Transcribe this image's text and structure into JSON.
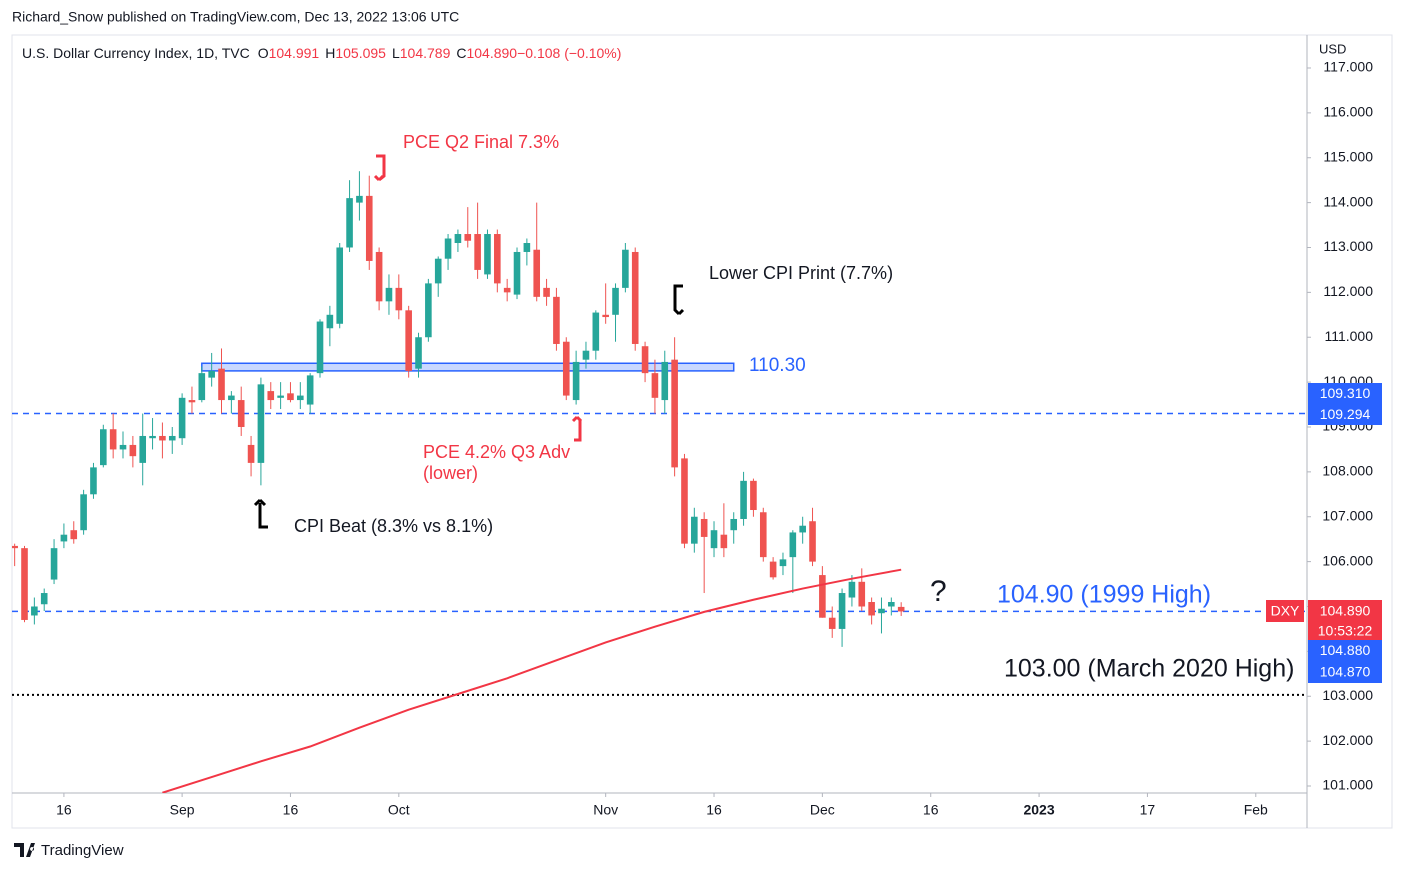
{
  "chart_data": {
    "type": "candlestick",
    "header": "Richard_Snow published on TradingView.com, Dec 13, 2022 13:06 UTC",
    "title": "U.S. Dollar Currency Index, 1D, TVC",
    "legend_items": [
      {
        "key": "O",
        "value": "104.991"
      },
      {
        "key": "H",
        "value": "105.095"
      },
      {
        "key": "L",
        "value": "104.789"
      },
      {
        "key": "C",
        "value": "104.890"
      },
      {
        "key": "",
        "value": "−0.108 (−0.10%)"
      }
    ],
    "currency": "USD",
    "footer": "TradingView",
    "up_color": "#26a69a",
    "down_color": "#ef5350",
    "ylim": [
      100.844,
      117.735
    ],
    "yticks": [
      {
        "value": 101,
        "label": "101.000"
      },
      {
        "value": 102,
        "label": "102.000"
      },
      {
        "value": 103,
        "label": "103.000"
      },
      {
        "value": 104,
        "label": "104.000"
      },
      {
        "value": 105,
        "label": "105.000"
      },
      {
        "value": 106,
        "label": "106.000"
      },
      {
        "value": 107,
        "label": "107.000"
      },
      {
        "value": 108,
        "label": "108.000"
      },
      {
        "value": 109,
        "label": "109.000"
      },
      {
        "value": 110,
        "label": "110.000"
      },
      {
        "value": 111,
        "label": "111.000"
      },
      {
        "value": 112,
        "label": "112.000"
      },
      {
        "value": 113,
        "label": "113.000"
      },
      {
        "value": 114,
        "label": "114.000"
      },
      {
        "value": 115,
        "label": "115.000"
      },
      {
        "value": 116,
        "label": "116.000"
      },
      {
        "value": 117,
        "label": "117.000"
      }
    ],
    "xlim": [
      -0.27,
      131.2
    ],
    "xticks": [
      {
        "value": 5,
        "label": "16"
      },
      {
        "value": 17,
        "label": "Sep"
      },
      {
        "value": 28,
        "label": "16"
      },
      {
        "value": 39,
        "label": "Oct"
      },
      {
        "value": 60,
        "label": "Nov"
      },
      {
        "value": 71,
        "label": "16"
      },
      {
        "value": 82,
        "label": "Dec"
      },
      {
        "value": 93,
        "label": "16"
      },
      {
        "value": 104,
        "label": "2023"
      },
      {
        "value": 115,
        "label": "17"
      },
      {
        "value": 126,
        "label": "Feb"
      }
    ],
    "candles": [
      {
        "open": 106.35,
        "high": 106.4,
        "low": 105.9,
        "close": 106.3
      },
      {
        "open": 106.3,
        "high": 106.35,
        "low": 104.65,
        "close": 104.7
      },
      {
        "open": 104.8,
        "high": 105.2,
        "low": 104.6,
        "close": 105.0
      },
      {
        "open": 105.05,
        "high": 105.4,
        "low": 104.9,
        "close": 105.3
      },
      {
        "open": 105.6,
        "high": 106.5,
        "low": 105.5,
        "close": 106.3
      },
      {
        "open": 106.45,
        "high": 106.85,
        "low": 106.3,
        "close": 106.6
      },
      {
        "open": 106.7,
        "high": 106.9,
        "low": 106.4,
        "close": 106.5
      },
      {
        "open": 106.7,
        "high": 107.6,
        "low": 106.6,
        "close": 107.5
      },
      {
        "open": 107.5,
        "high": 108.2,
        "low": 107.4,
        "close": 108.1
      },
      {
        "open": 108.15,
        "high": 109.05,
        "low": 108.1,
        "close": 108.95
      },
      {
        "open": 108.95,
        "high": 109.3,
        "low": 108.3,
        "close": 108.5
      },
      {
        "open": 108.5,
        "high": 108.9,
        "low": 108.3,
        "close": 108.6
      },
      {
        "open": 108.6,
        "high": 108.8,
        "low": 108.1,
        "close": 108.35
      },
      {
        "open": 108.2,
        "high": 109.3,
        "low": 107.7,
        "close": 108.8
      },
      {
        "open": 108.75,
        "high": 109.2,
        "low": 108.5,
        "close": 108.8
      },
      {
        "open": 108.8,
        "high": 109.1,
        "low": 108.3,
        "close": 108.7
      },
      {
        "open": 108.7,
        "high": 109.0,
        "low": 108.4,
        "close": 108.8
      },
      {
        "open": 108.75,
        "high": 109.75,
        "low": 108.6,
        "close": 109.65
      },
      {
        "open": 109.6,
        "high": 109.9,
        "low": 109.3,
        "close": 109.55
      },
      {
        "open": 109.6,
        "high": 110.35,
        "low": 109.55,
        "close": 110.2
      },
      {
        "open": 110.1,
        "high": 110.65,
        "low": 109.9,
        "close": 110.25
      },
      {
        "open": 110.3,
        "high": 110.75,
        "low": 109.3,
        "close": 109.6
      },
      {
        "open": 109.6,
        "high": 109.8,
        "low": 109.3,
        "close": 109.7
      },
      {
        "open": 109.6,
        "high": 109.9,
        "low": 108.8,
        "close": 109.0
      },
      {
        "open": 108.6,
        "high": 108.8,
        "low": 107.9,
        "close": 108.2
      },
      {
        "open": 108.2,
        "high": 110.1,
        "low": 107.7,
        "close": 109.95
      },
      {
        "open": 109.8,
        "high": 110.0,
        "low": 109.4,
        "close": 109.6
      },
      {
        "open": 109.65,
        "high": 110.0,
        "low": 109.4,
        "close": 109.7
      },
      {
        "open": 109.75,
        "high": 110.0,
        "low": 109.55,
        "close": 109.6
      },
      {
        "open": 109.6,
        "high": 110.0,
        "low": 109.4,
        "close": 109.7
      },
      {
        "open": 109.5,
        "high": 110.2,
        "low": 109.3,
        "close": 110.15
      },
      {
        "open": 110.2,
        "high": 111.4,
        "low": 110.1,
        "close": 111.35
      },
      {
        "open": 111.2,
        "high": 111.7,
        "low": 110.8,
        "close": 111.5
      },
      {
        "open": 111.3,
        "high": 113.1,
        "low": 111.2,
        "close": 113.0
      },
      {
        "open": 113.0,
        "high": 114.5,
        "low": 112.9,
        "close": 114.1
      },
      {
        "open": 114.0,
        "high": 114.7,
        "low": 113.6,
        "close": 114.15
      },
      {
        "open": 114.15,
        "high": 114.6,
        "low": 112.5,
        "close": 112.7
      },
      {
        "open": 112.9,
        "high": 113.0,
        "low": 111.6,
        "close": 111.8
      },
      {
        "open": 111.8,
        "high": 112.4,
        "low": 111.5,
        "close": 112.1
      },
      {
        "open": 112.1,
        "high": 112.4,
        "low": 111.4,
        "close": 111.6
      },
      {
        "open": 111.6,
        "high": 111.7,
        "low": 110.1,
        "close": 110.25
      },
      {
        "open": 110.3,
        "high": 111.1,
        "low": 110.1,
        "close": 111.0
      },
      {
        "open": 111.0,
        "high": 112.3,
        "low": 110.9,
        "close": 112.2
      },
      {
        "open": 112.2,
        "high": 112.8,
        "low": 111.9,
        "close": 112.75
      },
      {
        "open": 112.75,
        "high": 113.3,
        "low": 112.5,
        "close": 113.2
      },
      {
        "open": 113.1,
        "high": 113.4,
        "low": 112.9,
        "close": 113.3
      },
      {
        "open": 113.3,
        "high": 113.9,
        "low": 113.0,
        "close": 113.15
      },
      {
        "open": 113.3,
        "high": 114.0,
        "low": 112.3,
        "close": 112.5
      },
      {
        "open": 112.4,
        "high": 113.4,
        "low": 112.3,
        "close": 113.3
      },
      {
        "open": 113.3,
        "high": 113.4,
        "low": 112.0,
        "close": 112.2
      },
      {
        "open": 112.1,
        "high": 112.3,
        "low": 111.8,
        "close": 112.0
      },
      {
        "open": 111.95,
        "high": 113.0,
        "low": 111.85,
        "close": 112.9
      },
      {
        "open": 112.9,
        "high": 113.2,
        "low": 112.6,
        "close": 113.1
      },
      {
        "open": 112.95,
        "high": 114.0,
        "low": 111.8,
        "close": 111.9
      },
      {
        "open": 112.1,
        "high": 112.3,
        "low": 111.7,
        "close": 111.9
      },
      {
        "open": 111.9,
        "high": 112.1,
        "low": 110.7,
        "close": 110.85
      },
      {
        "open": 110.9,
        "high": 111.0,
        "low": 109.6,
        "close": 109.7
      },
      {
        "open": 109.6,
        "high": 110.7,
        "low": 109.5,
        "close": 110.45
      },
      {
        "open": 110.5,
        "high": 110.9,
        "low": 110.3,
        "close": 110.7
      },
      {
        "open": 110.7,
        "high": 111.6,
        "low": 110.5,
        "close": 111.55
      },
      {
        "open": 111.5,
        "high": 112.2,
        "low": 111.3,
        "close": 111.45
      },
      {
        "open": 111.5,
        "high": 112.2,
        "low": 110.9,
        "close": 112.1
      },
      {
        "open": 112.1,
        "high": 113.1,
        "low": 112.0,
        "close": 112.95
      },
      {
        "open": 112.9,
        "high": 113.0,
        "low": 110.7,
        "close": 110.85
      },
      {
        "open": 110.8,
        "high": 110.9,
        "low": 110.0,
        "close": 110.2
      },
      {
        "open": 110.2,
        "high": 110.5,
        "low": 109.3,
        "close": 109.65
      },
      {
        "open": 109.6,
        "high": 110.7,
        "low": 109.3,
        "close": 110.45
      },
      {
        "open": 110.5,
        "high": 111.0,
        "low": 107.9,
        "close": 108.1
      },
      {
        "open": 108.3,
        "high": 108.4,
        "low": 106.3,
        "close": 106.4
      },
      {
        "open": 106.4,
        "high": 107.2,
        "low": 106.2,
        "close": 107.0
      },
      {
        "open": 106.95,
        "high": 107.1,
        "low": 105.3,
        "close": 106.55
      },
      {
        "open": 106.3,
        "high": 106.9,
        "low": 106.1,
        "close": 106.7
      },
      {
        "open": 106.6,
        "high": 107.3,
        "low": 106.1,
        "close": 106.3
      },
      {
        "open": 106.7,
        "high": 107.1,
        "low": 106.4,
        "close": 106.95
      },
      {
        "open": 106.95,
        "high": 108.0,
        "low": 106.8,
        "close": 107.8
      },
      {
        "open": 107.8,
        "high": 107.85,
        "low": 107.0,
        "close": 107.15
      },
      {
        "open": 107.1,
        "high": 107.2,
        "low": 106.0,
        "close": 106.1
      },
      {
        "open": 106.0,
        "high": 106.1,
        "low": 105.6,
        "close": 105.65
      },
      {
        "open": 105.9,
        "high": 106.2,
        "low": 105.7,
        "close": 106.05
      },
      {
        "open": 106.1,
        "high": 106.7,
        "low": 105.3,
        "close": 106.65
      },
      {
        "open": 106.65,
        "high": 107.0,
        "low": 106.4,
        "close": 106.8
      },
      {
        "open": 106.9,
        "high": 107.2,
        "low": 105.9,
        "close": 106.0
      },
      {
        "open": 105.7,
        "high": 105.9,
        "low": 104.75,
        "close": 104.75
      },
      {
        "open": 104.75,
        "high": 105.0,
        "low": 104.3,
        "close": 104.5
      },
      {
        "open": 104.5,
        "high": 105.4,
        "low": 104.1,
        "close": 105.3
      },
      {
        "open": 105.2,
        "high": 105.7,
        "low": 105.0,
        "close": 105.55
      },
      {
        "open": 105.55,
        "high": 105.85,
        "low": 104.9,
        "close": 105.0
      },
      {
        "open": 105.1,
        "high": 105.2,
        "low": 104.6,
        "close": 104.8
      },
      {
        "open": 104.85,
        "high": 105.2,
        "low": 104.4,
        "close": 104.95
      },
      {
        "open": 105.0,
        "high": 105.2,
        "low": 104.8,
        "close": 105.1
      },
      {
        "open": 104.991,
        "high": 105.095,
        "low": 104.789,
        "close": 104.89
      }
    ],
    "moving_average": {
      "color": "#f23645",
      "x": [
        15,
        20,
        25,
        30,
        35,
        40,
        45,
        50,
        55,
        60,
        65,
        70,
        75,
        80,
        85,
        90
      ],
      "values": [
        100.85,
        101.2,
        101.55,
        101.88,
        102.3,
        102.7,
        103.05,
        103.4,
        103.8,
        104.2,
        104.55,
        104.88,
        105.15,
        105.4,
        105.62,
        105.82
      ]
    },
    "levels": [
      {
        "value": 109.3,
        "style": "dashed",
        "color": "#2962ff"
      },
      {
        "value": 104.89,
        "style": "dashed",
        "color": "#2962ff"
      },
      {
        "value": 103.03,
        "style": "dotted",
        "color": "#000000"
      }
    ],
    "zone": {
      "from": 110.25,
      "to": 110.42,
      "start": 19,
      "end": 73,
      "color": "#2962ff"
    },
    "annotations": [
      {
        "text": "PCE Q2 Final 7.3%",
        "color": "#f23645"
      },
      {
        "text": "Lower CPI Print (7.7%)",
        "color": "#131722"
      },
      {
        "text": "110.30",
        "color": "#2962ff"
      },
      {
        "text": "PCE 4.2% Q3 Adv",
        "color": "#f23645"
      },
      {
        "text": "(lower)",
        "color": "#f23645"
      },
      {
        "text": "CPI Beat (8.3% vs 8.1%)",
        "color": "#131722"
      },
      {
        "text": "?",
        "color": "#131722"
      },
      {
        "text": "104.90 (1999 High)",
        "color": "#2962ff"
      },
      {
        "text": "103.00 (March 2020 High)",
        "color": "#131722"
      }
    ],
    "price_labels": [
      {
        "text": "109.310",
        "color": "#2962ff"
      },
      {
        "text": "109.294",
        "color": "#2962ff"
      },
      {
        "text": "DXY",
        "color": "#f23645"
      },
      {
        "text": "104.890",
        "color": "#f23645"
      },
      {
        "text": "10:53:22",
        "color": "#f23645"
      },
      {
        "text": "104.880",
        "color": "#2962ff"
      },
      {
        "text": "104.870",
        "color": "#2962ff"
      }
    ]
  }
}
